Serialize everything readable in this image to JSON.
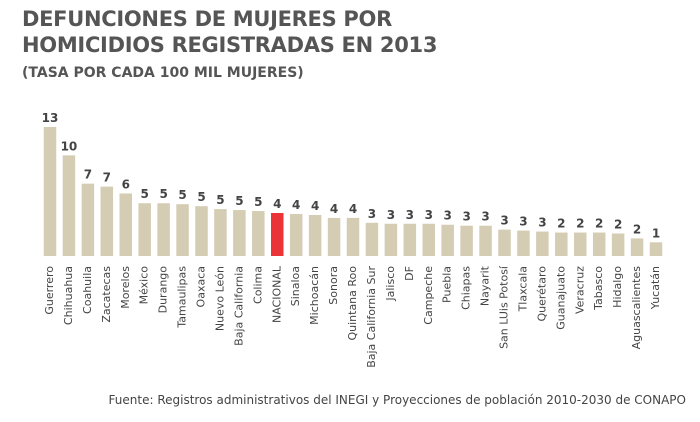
{
  "chart_data": {
    "type": "bar",
    "title": [
      "DEFUNCIONES DE MUJERES POR",
      "HOMICIDIOS REGISTRADAS EN 2013"
    ],
    "subtitle": "(TASA POR CADA 100 MIL MUJERES)",
    "source": "Fuente: Registros administrativos del INEGI y Proyecciones de población 2010-2030 de CONAPO",
    "categories": [
      "Guerrero",
      "Chihuahua",
      "Coahuila",
      "Zacatecas",
      "Morelos",
      "México",
      "Durango",
      "Tamaulipas",
      "Oaxaca",
      "Nuevo León",
      "Baja California",
      "Colima",
      "NACIONAL",
      "Sinaloa",
      "Michoacán",
      "Sonora",
      "Quintana Roo",
      "Baja California Sur",
      "Jalisco",
      "DF",
      "Campeche",
      "Puebla",
      "Chiapas",
      "Nayarit",
      "San LUis Potosí",
      "Tlaxcala",
      "Querétaro",
      "Guanajuato",
      "Veracruz",
      "Tabasco",
      "Hidalgo",
      "Aguascalientes",
      "Yucatán"
    ],
    "values": [
      13.2,
      10.3,
      7.4,
      7.1,
      6.4,
      5.4,
      5.4,
      5.3,
      5.1,
      4.8,
      4.7,
      4.6,
      4.4,
      4.3,
      4.2,
      3.9,
      3.9,
      3.4,
      3.3,
      3.3,
      3.3,
      3.2,
      3.1,
      3.1,
      2.7,
      2.6,
      2.5,
      2.4,
      2.4,
      2.4,
      2.3,
      1.8,
      1.4
    ],
    "value_labels": [
      "13",
      "10",
      "7",
      "7",
      "6",
      "5",
      "5",
      "5",
      "5",
      "5",
      "5",
      "5",
      "4",
      "4",
      "4",
      "4",
      "4",
      "3",
      "3",
      "3",
      "3",
      "3",
      "3",
      "3",
      "3",
      "3",
      "3",
      "2",
      "2",
      "2",
      "2",
      "2",
      "1"
    ],
    "colors": [
      "#d5ccb4",
      "#d5ccb4",
      "#d5ccb4",
      "#d5ccb4",
      "#d5ccb4",
      "#d5ccb4",
      "#d5ccb4",
      "#d5ccb4",
      "#d5ccb4",
      "#d5ccb4",
      "#d5ccb4",
      "#d5ccb4",
      "#ec3338",
      "#d5ccb4",
      "#d5ccb4",
      "#d5ccb4",
      "#d5ccb4",
      "#d5ccb4",
      "#d5ccb4",
      "#d5ccb4",
      "#d5ccb4",
      "#d5ccb4",
      "#d5ccb4",
      "#d5ccb4",
      "#d5ccb4",
      "#d5ccb4",
      "#d5ccb4",
      "#d5ccb4",
      "#d5ccb4",
      "#d5ccb4",
      "#d5ccb4",
      "#d5ccb4",
      "#d5ccb4"
    ],
    "ylim": [
      0,
      13.2
    ]
  }
}
